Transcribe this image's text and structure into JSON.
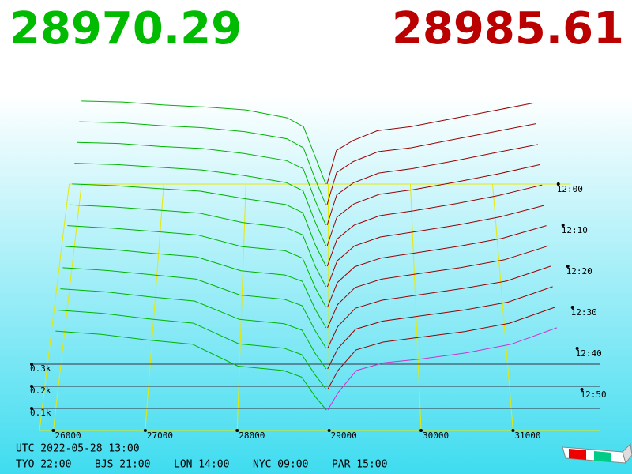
{
  "chart_data": {
    "type": "depth",
    "best_bid": 28970.29,
    "best_ask": 28985.61,
    "bid_color": "#00b400",
    "ask_color": "#9a0000",
    "front_ask_color": "#cc33cc",
    "xlim": [
      25850,
      31950
    ],
    "xticks": [
      26000,
      27000,
      28000,
      29000,
      30000,
      31000
    ],
    "ylim": [
      0,
      1000
    ],
    "yticks": [
      {
        "value": 100,
        "label": "0.1k"
      },
      {
        "value": 200,
        "label": "0.2k"
      },
      {
        "value": 300,
        "label": "0.3k"
      }
    ],
    "tlim": [
      0,
      60
    ],
    "tticks": [
      {
        "value": 0,
        "label": "12:00"
      },
      {
        "value": 10,
        "label": "12:10"
      },
      {
        "value": 20,
        "label": "12:20"
      },
      {
        "value": 30,
        "label": "12:30"
      },
      {
        "value": 40,
        "label": "12:40"
      },
      {
        "value": 50,
        "label": "12:50"
      }
    ],
    "time_axis_price": 31800,
    "bid_prices": [
      26000,
      26500,
      27000,
      27500,
      28000,
      28500,
      28700,
      28850,
      28970
    ],
    "ask_prices": [
      28986,
      29100,
      29300,
      29600,
      30000,
      30500,
      31000,
      31500
    ],
    "snapshots": [
      {
        "t": 0,
        "bids": [
          420,
          415,
          400,
          390,
          375,
          335,
          290,
          130,
          0
        ],
        "asks": [
          0,
          170,
          220,
          270,
          290,
          330,
          370,
          410
        ]
      },
      {
        "t": 5,
        "bids": [
          415,
          410,
          395,
          385,
          365,
          330,
          285,
          120,
          0
        ],
        "asks": [
          0,
          160,
          215,
          265,
          285,
          325,
          365,
          405
        ]
      },
      {
        "t": 10,
        "bids": [
          410,
          405,
          390,
          380,
          355,
          320,
          280,
          115,
          0
        ],
        "asks": [
          0,
          150,
          210,
          258,
          280,
          318,
          360,
          400
        ]
      },
      {
        "t": 15,
        "bids": [
          405,
          398,
          385,
          372,
          345,
          310,
          270,
          110,
          0
        ],
        "asks": [
          0,
          140,
          205,
          252,
          275,
          312,
          352,
          398
        ]
      },
      {
        "t": 20,
        "bids": [
          400,
          392,
          378,
          365,
          330,
          300,
          260,
          100,
          0
        ],
        "asks": [
          0,
          132,
          200,
          246,
          270,
          305,
          345,
          395
        ]
      },
      {
        "t": 25,
        "bids": [
          395,
          385,
          370,
          355,
          310,
          285,
          250,
          95,
          0
        ],
        "asks": [
          0,
          125,
          197,
          240,
          265,
          298,
          338,
          392
        ]
      },
      {
        "t": 30,
        "bids": [
          390,
          378,
          362,
          345,
          290,
          270,
          235,
          90,
          0
        ],
        "asks": [
          0,
          118,
          194,
          235,
          260,
          292,
          330,
          390
        ]
      },
      {
        "t": 35,
        "bids": [
          385,
          372,
          352,
          335,
          270,
          250,
          220,
          85,
          0
        ],
        "asks": [
          0,
          110,
          191,
          230,
          255,
          285,
          322,
          388
        ]
      },
      {
        "t": 40,
        "bids": [
          378,
          365,
          345,
          325,
          250,
          230,
          200,
          80,
          0
        ],
        "asks": [
          0,
          102,
          188,
          226,
          250,
          280,
          315,
          385
        ]
      },
      {
        "t": 45,
        "bids": [
          372,
          358,
          335,
          315,
          230,
          210,
          180,
          70,
          0
        ],
        "asks": [
          0,
          95,
          185,
          222,
          245,
          273,
          310,
          382
        ]
      },
      {
        "t": 50,
        "bids": [
          365,
          350,
          325,
          305,
          210,
          190,
          160,
          65,
          0
        ],
        "asks": [
          0,
          88,
          182,
          218,
          240,
          266,
          305,
          378
        ]
      },
      {
        "t": 55,
        "bids": [
          360,
          345,
          320,
          300,
          200,
          180,
          150,
          60,
          0
        ],
        "asks": [
          0,
          80,
          180,
          215,
          232,
          260,
          300,
          375
        ]
      }
    ]
  },
  "footer": {
    "utc": "UTC 2022-05-28 13:00",
    "zones": [
      "TYO 22:00",
      "BJS 21:00",
      "LON 14:00",
      "NYC 09:00",
      "PAR 15:00"
    ]
  }
}
